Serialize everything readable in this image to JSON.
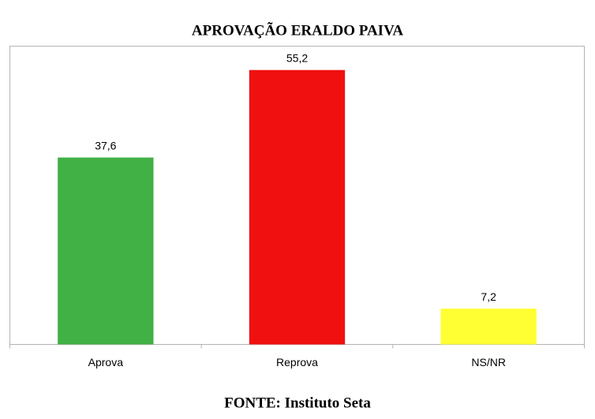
{
  "chart_data": {
    "type": "bar",
    "title": "APROVAÇÃO ERALDO PAIVA",
    "categories": [
      "Aprova",
      "Reprova",
      "NS/NR"
    ],
    "values": [
      37.6,
      55.2,
      7.2
    ],
    "value_labels": [
      "37,6",
      "55,2",
      "7,2"
    ],
    "colors": [
      "#41b045",
      "#f01010",
      "#ffff33"
    ],
    "ylim": [
      0,
      60
    ],
    "source": "FONTE: Instituto Seta"
  }
}
